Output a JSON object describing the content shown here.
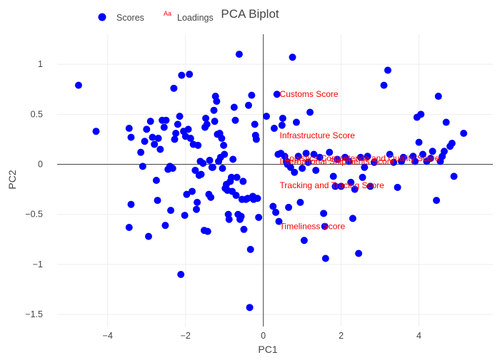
{
  "chart_data": {
    "type": "scatter",
    "title": "PCA Biplot",
    "xlabel": "PC1",
    "ylabel": "PC2",
    "xlim": [
      -5.3,
      5.9
    ],
    "ylim": [
      -1.62,
      1.3
    ],
    "xticks": [
      -4,
      -2,
      0,
      2,
      4
    ],
    "xtick_labels": [
      "−4",
      "−2",
      "0",
      "2",
      "4"
    ],
    "yticks": [
      -1.5,
      -1,
      -0.5,
      0,
      0.5,
      1
    ],
    "ytick_labels": [
      "−1.5",
      "−1",
      "−0.5",
      "0",
      "0.5",
      "1"
    ],
    "grid": true,
    "zero_lines": true,
    "legend": {
      "position": "top-left",
      "items": [
        {
          "name": "Scores",
          "symbol": "circle",
          "color": "#0000ff"
        },
        {
          "name": "Loadings",
          "symbol": "Aa",
          "color": "#ff0000"
        }
      ]
    },
    "series": [
      {
        "name": "Scores",
        "color": "#0000ff",
        "points": [
          [
            -4.75,
            0.79
          ],
          [
            -4.3,
            0.33
          ],
          [
            -3.45,
            0.36
          ],
          [
            -3.4,
            0.27
          ],
          [
            -3.4,
            -0.4
          ],
          [
            -3.45,
            -0.63
          ],
          [
            -3.15,
            0.12
          ],
          [
            -3.1,
            -0.02
          ],
          [
            -3.05,
            0.23
          ],
          [
            -3.0,
            0.35
          ],
          [
            -2.95,
            -0.72
          ],
          [
            -2.9,
            0.43
          ],
          [
            -2.85,
            0.27
          ],
          [
            -2.8,
            0.2
          ],
          [
            -2.75,
            -0.16
          ],
          [
            -2.72,
            -0.36
          ],
          [
            -2.7,
            0.26
          ],
          [
            -2.65,
            0.15
          ],
          [
            -2.6,
            0.44
          ],
          [
            -2.55,
            0.37
          ],
          [
            -2.52,
            -0.61
          ],
          [
            -2.5,
            0.44
          ],
          [
            -2.45,
            -0.05
          ],
          [
            -2.4,
            -0.02
          ],
          [
            -2.38,
            -0.46
          ],
          [
            -2.33,
            -0.04
          ],
          [
            -2.3,
            0.76
          ],
          [
            -2.28,
            0.25
          ],
          [
            -2.25,
            0.31
          ],
          [
            -2.2,
            0.4
          ],
          [
            -2.15,
            0.48
          ],
          [
            -2.12,
            -1.1
          ],
          [
            -2.1,
            0.89
          ],
          [
            -2.05,
            0.33
          ],
          [
            -2.02,
            -0.51
          ],
          [
            -2.0,
            0.28
          ],
          [
            -1.97,
            -0.3
          ],
          [
            -1.93,
            0.35
          ],
          [
            -1.9,
            0.9
          ],
          [
            -1.87,
            0.26
          ],
          [
            -1.83,
            -0.27
          ],
          [
            -1.8,
            0.2
          ],
          [
            -1.75,
            -0.06
          ],
          [
            -1.72,
            -0.45
          ],
          [
            -1.7,
            -0.38
          ],
          [
            -1.68,
            0.19
          ],
          [
            -1.65,
            -0.11
          ],
          [
            -1.62,
            0.03
          ],
          [
            -1.6,
            -0.1
          ],
          [
            -1.55,
            0.01
          ],
          [
            -1.52,
            -0.66
          ],
          [
            -1.5,
            0.37
          ],
          [
            -1.48,
            0.46
          ],
          [
            -1.45,
            0.4
          ],
          [
            -1.43,
            -0.67
          ],
          [
            -1.4,
            -0.3
          ],
          [
            -1.38,
            0.04
          ],
          [
            -1.35,
            -0.33
          ],
          [
            -1.32,
            -0.03
          ],
          [
            -1.3,
            -0.03
          ],
          [
            -1.27,
            0.54
          ],
          [
            -1.25,
            0.43
          ],
          [
            -1.23,
            0.68
          ],
          [
            -1.2,
            0.63
          ],
          [
            -1.18,
            0.3
          ],
          [
            -1.15,
            0.03
          ],
          [
            -1.12,
            0.31
          ],
          [
            -1.1,
            0.07
          ],
          [
            -1.07,
            0.26
          ],
          [
            -1.05,
            -0.04
          ],
          [
            -1.02,
            0.19
          ],
          [
            -1.0,
            0.1
          ],
          [
            -0.98,
            -0.24
          ],
          [
            -0.95,
            -0.2
          ],
          [
            -0.92,
            -0.26
          ],
          [
            -0.9,
            -0.5
          ],
          [
            -0.88,
            -0.55
          ],
          [
            -0.85,
            -0.17
          ],
          [
            -0.82,
            -0.13
          ],
          [
            -0.8,
            -0.27
          ],
          [
            -0.78,
            0.05
          ],
          [
            -0.75,
            0.57
          ],
          [
            -0.72,
            0.44
          ],
          [
            -0.7,
            -0.31
          ],
          [
            -0.68,
            -0.13
          ],
          [
            -0.65,
            -0.5
          ],
          [
            -0.62,
            1.1
          ],
          [
            -0.6,
            -0.55
          ],
          [
            -0.57,
            -0.52
          ],
          [
            -0.55,
            -0.35
          ],
          [
            -0.52,
            -0.17
          ],
          [
            -0.5,
            -0.65
          ],
          [
            -0.45,
            -0.35
          ],
          [
            -0.4,
            -0.34
          ],
          [
            -0.38,
            0.59
          ],
          [
            -0.35,
            -1.43
          ],
          [
            -0.33,
            -0.85
          ],
          [
            -0.3,
            0.69
          ],
          [
            -0.27,
            -0.32
          ],
          [
            -0.25,
            -0.35
          ],
          [
            -0.22,
            0.4
          ],
          [
            -0.2,
            0.29
          ],
          [
            -0.18,
            0.25
          ],
          [
            -0.15,
            -0.34
          ],
          [
            -0.12,
            -0.53
          ],
          [
            0.08,
            0.48
          ],
          [
            0.25,
            -0.42
          ],
          [
            0.28,
            0.36
          ],
          [
            0.32,
            -0.48
          ],
          [
            0.35,
            0.7
          ],
          [
            0.38,
            0.1
          ],
          [
            0.4,
            -0.57
          ],
          [
            0.45,
            0.11
          ],
          [
            0.48,
            0.39
          ],
          [
            0.5,
            0.46
          ],
          [
            0.55,
            0.08
          ],
          [
            0.6,
            0.03
          ],
          [
            0.62,
            0.0
          ],
          [
            0.65,
            -0.43
          ],
          [
            0.7,
            -0.03
          ],
          [
            0.75,
            1.07
          ],
          [
            0.8,
            -0.08
          ],
          [
            0.85,
            0.42
          ],
          [
            0.9,
            0.08
          ],
          [
            0.95,
            -0.38
          ],
          [
            1.0,
            -0.04
          ],
          [
            1.05,
            -0.76
          ],
          [
            1.1,
            0.11
          ],
          [
            1.15,
            0.02
          ],
          [
            1.2,
            0.52
          ],
          [
            1.3,
            0.1
          ],
          [
            1.35,
            -0.06
          ],
          [
            1.45,
            0.07
          ],
          [
            1.55,
            -0.49
          ],
          [
            1.58,
            -0.62
          ],
          [
            1.6,
            -0.94
          ],
          [
            1.7,
            0.12
          ],
          [
            1.8,
            -0.12
          ],
          [
            1.85,
            -0.22
          ],
          [
            1.9,
            0.05
          ],
          [
            2.0,
            -0.22
          ],
          [
            2.1,
            0.07
          ],
          [
            2.2,
            0.03
          ],
          [
            2.25,
            -0.18
          ],
          [
            2.3,
            -0.54
          ],
          [
            2.35,
            -0.25
          ],
          [
            2.45,
            -0.89
          ],
          [
            2.5,
            0.07
          ],
          [
            2.55,
            -0.13
          ],
          [
            2.6,
            -0.03
          ],
          [
            2.68,
            0.08
          ],
          [
            2.75,
            -0.22
          ],
          [
            2.85,
            0.02
          ],
          [
            3.1,
            0.79
          ],
          [
            3.2,
            0.94
          ],
          [
            3.25,
            0.1
          ],
          [
            3.35,
            0.02
          ],
          [
            3.45,
            -0.23
          ],
          [
            3.55,
            0.03
          ],
          [
            3.6,
            0.07
          ],
          [
            3.85,
            0.08
          ],
          [
            3.9,
            0.03
          ],
          [
            3.95,
            0.47
          ],
          [
            4.0,
            0.22
          ],
          [
            4.05,
            0.5
          ],
          [
            4.1,
            0.1
          ],
          [
            4.2,
            0.03
          ],
          [
            4.3,
            0.06
          ],
          [
            4.35,
            0.13
          ],
          [
            4.45,
            -0.36
          ],
          [
            4.5,
            0.68
          ],
          [
            4.55,
            0.03
          ],
          [
            4.6,
            0.08
          ],
          [
            4.65,
            0.13
          ],
          [
            4.7,
            0.42
          ],
          [
            4.8,
            0.18
          ],
          [
            4.85,
            0.21
          ],
          [
            4.9,
            -0.12
          ],
          [
            5.15,
            0.31
          ]
        ]
      }
    ],
    "loadings": [
      {
        "label": "Customs Score",
        "x": 0.42,
        "y": 0.7
      },
      {
        "label": "Infrastructure Score",
        "x": 0.42,
        "y": 0.29
      },
      {
        "label": "Logistics Competence and Quality Score",
        "x": 0.55,
        "y": 0.06
      },
      {
        "label": "International Shipments Score",
        "x": 0.42,
        "y": 0.03
      },
      {
        "label": "Tracking and Tracing Score",
        "x": 0.42,
        "y": -0.21
      },
      {
        "label": "Timeliness Score",
        "x": 0.42,
        "y": -0.62
      }
    ],
    "loading_color": "#ff0000"
  }
}
